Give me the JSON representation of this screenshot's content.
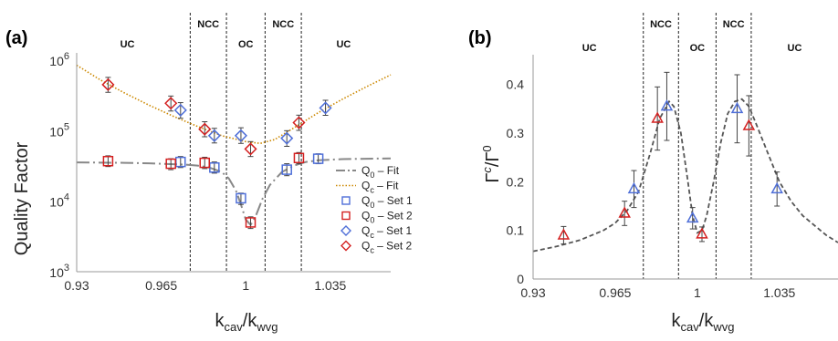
{
  "chart_data": [
    {
      "panel": "(a)",
      "type": "scatter",
      "ylabel": "Quality Factor",
      "xlabel": "k_cav/k_wvg",
      "xlabel_main": "k",
      "xlabel_sub1": "cav",
      "xlabel_sep": "/k",
      "xlabel_sub2": "wvg",
      "yscale": "log",
      "xlim": [
        0.93,
        1.06
      ],
      "ylim": [
        1000,
        1000000
      ],
      "xticks": [
        0.93,
        0.965,
        1,
        1.035
      ],
      "xtick_labels": [
        "0.93",
        "0.965",
        "1",
        "1.035"
      ],
      "yticks": [
        {
          "base": "10",
          "exp": "3",
          "value": 1000
        },
        {
          "base": "10",
          "exp": "4",
          "value": 10000
        },
        {
          "base": "10",
          "exp": "5",
          "value": 100000
        },
        {
          "base": "10",
          "exp": "6",
          "value": 1000000
        }
      ],
      "region_labels": [
        {
          "text": "UC",
          "x": 0.951
        },
        {
          "text": "NCC",
          "x": 0.9845
        },
        {
          "text": "OC",
          "x": 1.0
        },
        {
          "text": "NCC",
          "x": 1.0155
        },
        {
          "text": "UC",
          "x": 1.0405
        }
      ],
      "boundaries": [
        0.977,
        0.992,
        1.008,
        1.023
      ],
      "legend": [
        {
          "label_main": "Q",
          "label_sub": "0",
          "label_rest": " – Fit",
          "kind": "dashdot",
          "color": "#888888"
        },
        {
          "label_main": "Q",
          "label_sub": "c",
          "label_rest": " – Fit",
          "kind": "dotted",
          "color": "#CC8800"
        },
        {
          "label_main": "Q",
          "label_sub": "0",
          "label_rest": " – Set 1",
          "kind": "square",
          "color": "#4F6FD8"
        },
        {
          "label_main": "Q",
          "label_sub": "0",
          "label_rest": " – Set 2",
          "kind": "square",
          "color": "#D42020"
        },
        {
          "label_main": "Q",
          "label_sub": "c",
          "label_rest": " – Set 1",
          "kind": "diamond",
          "color": "#4F6FD8"
        },
        {
          "label_main": "Q",
          "label_sub": "c",
          "label_rest": " – Set 2",
          "kind": "diamond",
          "color": "#D42020"
        }
      ],
      "series": [
        {
          "name": "Q0 – Set 1",
          "marker": "square",
          "color": "#4F6FD8",
          "x": [
            0.973,
            0.987,
            0.998,
            1.017,
            1.03
          ],
          "y": [
            36000,
            30000,
            11000,
            28000,
            40000
          ],
          "yerr_low": [
            30000,
            25000,
            9000,
            23000,
            34000
          ],
          "yerr_high": [
            43000,
            36000,
            13000,
            34000,
            47000
          ]
        },
        {
          "name": "Q0 – Set 2",
          "marker": "square",
          "color": "#D42020",
          "x": [
            0.943,
            0.969,
            0.983,
            1.002,
            1.022
          ],
          "y": [
            37000,
            34000,
            35000,
            5000,
            41000
          ],
          "yerr_low": [
            31000,
            28000,
            29000,
            4100,
            34000
          ],
          "yerr_high": [
            44000,
            40000,
            42000,
            6000,
            49000
          ]
        },
        {
          "name": "Qc – Set 1",
          "marker": "diamond",
          "color": "#4F6FD8",
          "x": [
            0.973,
            0.987,
            0.998,
            1.017,
            1.033
          ],
          "y": [
            195000,
            85000,
            85000,
            78000,
            210000
          ],
          "yerr_low": [
            150000,
            67000,
            66000,
            60000,
            165000
          ],
          "yerr_high": [
            250000,
            108000,
            110000,
            100000,
            270000
          ]
        },
        {
          "name": "Qc – Set 2",
          "marker": "diamond",
          "color": "#D42020",
          "x": [
            0.943,
            0.969,
            0.983,
            1.002,
            1.022
          ],
          "y": [
            450000,
            245000,
            105000,
            55000,
            130000
          ],
          "yerr_low": [
            350000,
            190000,
            82000,
            43000,
            101000
          ],
          "yerr_high": [
            570000,
            310000,
            134000,
            70000,
            166000
          ]
        }
      ],
      "fits": [
        {
          "name": "Q0 – Fit",
          "style": "dashdot",
          "color": "#888888",
          "x": [
            0.93,
            0.95,
            0.96,
            0.97,
            0.975,
            0.98,
            0.985,
            0.99,
            0.993,
            0.996,
            0.998,
            1.0,
            1.002,
            1.004,
            1.007,
            1.01,
            1.015,
            1.02,
            1.025,
            1.03,
            1.04,
            1.05,
            1.06
          ],
          "y": [
            35500,
            35000,
            34500,
            33500,
            33000,
            32000,
            30000,
            26000,
            21000,
            14000,
            9000,
            5500,
            4600,
            6000,
            11000,
            17000,
            26000,
            32000,
            36000,
            38000,
            39500,
            40000,
            40500
          ]
        },
        {
          "name": "Qc – Fit",
          "style": "dotted",
          "color": "#CC8800",
          "x": [
            0.93,
            0.94,
            0.95,
            0.96,
            0.97,
            0.98,
            0.99,
            1.0,
            1.006,
            1.012,
            1.02,
            1.03,
            1.04,
            1.05,
            1.06
          ],
          "y": [
            850000,
            520000,
            340000,
            230000,
            160000,
            115000,
            85000,
            70000,
            66000,
            75000,
            110000,
            180000,
            280000,
            420000,
            620000
          ]
        }
      ]
    },
    {
      "panel": "(b)",
      "type": "scatter",
      "ylabel_main": "Γ",
      "ylabel_sup": "c",
      "ylabel_sep": "/Γ",
      "ylabel_sup2": "0",
      "xlabel_main": "k",
      "xlabel_sub1": "cav",
      "xlabel_sep": "/k",
      "xlabel_sub2": "wvg",
      "xlim": [
        0.93,
        1.06
      ],
      "ylim": [
        0,
        0.45
      ],
      "xticks": [
        0.93,
        0.965,
        1,
        1.035
      ],
      "xtick_labels": [
        "0.93",
        "0.965",
        "1",
        "1.035"
      ],
      "yticks": [
        0,
        0.1,
        0.2,
        0.3,
        0.4
      ],
      "ytick_labels": [
        "0",
        "0.1",
        "0.2",
        "0.3",
        "0.4"
      ],
      "region_labels": [
        {
          "text": "UC",
          "x": 0.954
        },
        {
          "text": "NCC",
          "x": 0.9845
        },
        {
          "text": "OC",
          "x": 1.0
        },
        {
          "text": "NCC",
          "x": 1.0155
        },
        {
          "text": "UC",
          "x": 1.0415
        }
      ],
      "boundaries": [
        0.977,
        0.992,
        1.008,
        1.023
      ],
      "series": [
        {
          "name": "Set 1",
          "marker": "triangle",
          "color": "#4F6FD8",
          "x": [
            0.973,
            0.987,
            0.998,
            1.017,
            1.034
          ],
          "y": [
            0.185,
            0.355,
            0.125,
            0.35,
            0.185
          ],
          "yerr": [
            0.038,
            0.07,
            0.022,
            0.07,
            0.035
          ]
        },
        {
          "name": "Set 2",
          "marker": "triangle",
          "color": "#D42020",
          "x": [
            0.943,
            0.969,
            0.983,
            1.002,
            1.022
          ],
          "y": [
            0.09,
            0.135,
            0.33,
            0.092,
            0.315
          ],
          "yerr": [
            0.018,
            0.025,
            0.065,
            0.015,
            0.062
          ]
        }
      ],
      "fits": [
        {
          "name": "Fit",
          "style": "dashed",
          "color": "#555555",
          "x": [
            0.93,
            0.94,
            0.95,
            0.96,
            0.965,
            0.97,
            0.975,
            0.98,
            0.984,
            0.988,
            0.99,
            0.993,
            0.996,
            0.998,
            1.0,
            1.002,
            1.004,
            1.007,
            1.01,
            1.013,
            1.016,
            1.019,
            1.022,
            1.025,
            1.03,
            1.035,
            1.04,
            1.045,
            1.05,
            1.055,
            1.06
          ],
          "y": [
            0.057,
            0.067,
            0.08,
            0.1,
            0.115,
            0.14,
            0.18,
            0.26,
            0.33,
            0.365,
            0.355,
            0.3,
            0.2,
            0.13,
            0.095,
            0.1,
            0.13,
            0.2,
            0.28,
            0.34,
            0.365,
            0.37,
            0.355,
            0.32,
            0.26,
            0.2,
            0.16,
            0.13,
            0.11,
            0.09,
            0.075
          ]
        }
      ]
    }
  ]
}
